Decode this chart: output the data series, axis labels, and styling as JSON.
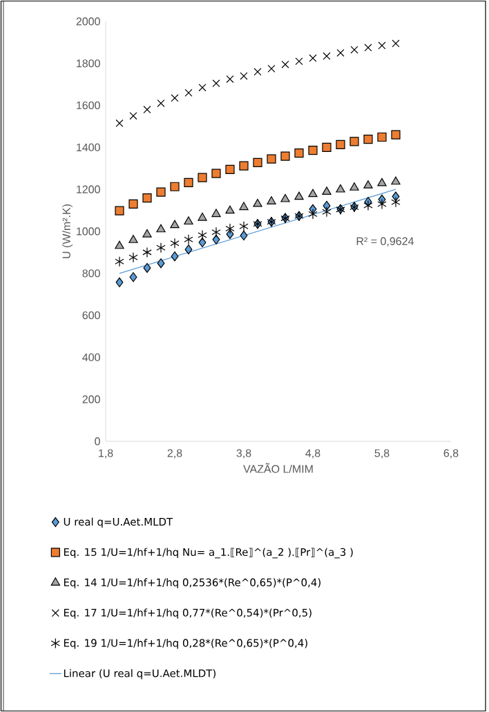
{
  "chart_data": {
    "type": "scatter",
    "xlabel": "VAZÃO L/MIM",
    "ylabel": "U (W/m².K)",
    "xlim": [
      1.8,
      6.8
    ],
    "xticks": [
      {
        "value": 1.8,
        "label": "1,8"
      },
      {
        "value": 2.8,
        "label": "2,8"
      },
      {
        "value": 3.8,
        "label": "3,8"
      },
      {
        "value": 4.8,
        "label": "4,8"
      },
      {
        "value": 5.8,
        "label": "5,8"
      },
      {
        "value": 6.8,
        "label": "6,8"
      }
    ],
    "ylim": [
      0,
      2000
    ],
    "yticks": [
      0,
      200,
      400,
      600,
      800,
      1000,
      1200,
      1400,
      1600,
      1800,
      2000
    ],
    "x": [
      2.0,
      2.2,
      2.4,
      2.6,
      2.8,
      3.0,
      3.2,
      3.4,
      3.6,
      3.8,
      4.0,
      4.2,
      4.4,
      4.6,
      4.8,
      5.0,
      5.2,
      5.4,
      5.6,
      5.8,
      6.0
    ],
    "legend": "bottom",
    "grid": false,
    "annotations": [
      "R² = 0,9624"
    ],
    "series": [
      {
        "name": "U real q=U.Aet.MLDT",
        "color": "#5b9bd5",
        "marker": "diamond",
        "values": [
          757,
          782,
          826,
          848,
          881,
          914,
          947,
          961,
          987,
          980,
          1035,
          1045,
          1064,
          1073,
          1106,
          1122,
          1106,
          1117,
          1141,
          1152,
          1166
        ]
      },
      {
        "name": "Eq. 15 1/U=1/hf+1/hq  Nu= a_1.⟦Re⟧^(a_2 ).⟦Pr⟧^(a_3 )",
        "color": "#ed7d31",
        "marker": "square",
        "values": [
          1098,
          1130,
          1159,
          1187,
          1213,
          1232,
          1256,
          1276,
          1295,
          1312,
          1328,
          1345,
          1358,
          1373,
          1386,
          1400,
          1413,
          1428,
          1439,
          1449,
          1460
        ]
      },
      {
        "name": "Eq. 14 1/U=1/hf+1/hq   0,2536*(Re^0,65)*(P^0,4)",
        "color": "#a5a5a5",
        "marker": "triangle",
        "values": [
          930,
          958,
          985,
          1009,
          1029,
          1046,
          1064,
          1082,
          1098,
          1115,
          1130,
          1142,
          1153,
          1164,
          1177,
          1188,
          1199,
          1208,
          1218,
          1229,
          1236
        ]
      },
      {
        "name": "Eq. 17 1/U=1/hf+1/hq   0,77*(Re^0,54)*(Pr^0,5)",
        "color": "#000000",
        "marker": "cross",
        "values": [
          1515,
          1550,
          1580,
          1610,
          1635,
          1660,
          1685,
          1705,
          1725,
          1740,
          1760,
          1775,
          1795,
          1810,
          1825,
          1835,
          1850,
          1865,
          1875,
          1885,
          1895
        ]
      },
      {
        "name": "Eq. 19 1/U=1/hf+1/hq   0,28*(Re^0,65)*(P^0,4)",
        "color": "#000000",
        "values": [
          856,
          876,
          900,
          922,
          943,
          961,
          982,
          996,
          1013,
          1024,
          1035,
          1045,
          1062,
          1073,
          1082,
          1093,
          1104,
          1115,
          1123,
          1130,
          1139
        ]
      },
      {
        "name": "Linear (U real q=U.Aet.MLDT)",
        "type": "line",
        "color": "#5b9bd5",
        "marker": "none",
        "x": [
          2.0,
          6.0
        ],
        "values": [
          800,
          1200
        ]
      }
    ]
  }
}
